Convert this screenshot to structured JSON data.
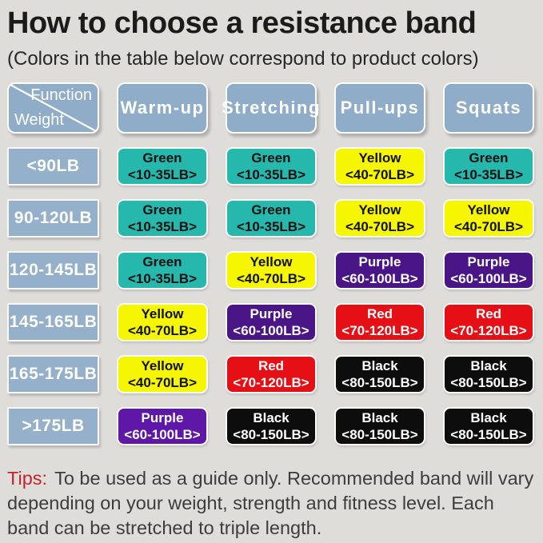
{
  "page": {
    "title": "How to choose a resistance band",
    "subtitle": "(Colors in the table below correspond to product colors)"
  },
  "table": {
    "corner": {
      "top_label": "Function",
      "bottom_label": "Weight"
    },
    "columns": [
      "Warm-up",
      "Stretching",
      "Pull-ups",
      "Squats"
    ],
    "rows": [
      {
        "weight": "<90LB",
        "cells": [
          {
            "name": "Green",
            "range": "<10-35LB>",
            "color": "teal"
          },
          {
            "name": "Green",
            "range": "<10-35LB>",
            "color": "teal"
          },
          {
            "name": "Yellow",
            "range": "<40-70LB>",
            "color": "yellow"
          },
          {
            "name": "Green",
            "range": "<10-35LB>",
            "color": "teal"
          }
        ]
      },
      {
        "weight": "90-120LB",
        "cells": [
          {
            "name": "Green",
            "range": "<10-35LB>",
            "color": "teal"
          },
          {
            "name": "Green",
            "range": "<10-35LB>",
            "color": "teal"
          },
          {
            "name": "Yellow",
            "range": "<40-70LB>",
            "color": "yellow"
          },
          {
            "name": "Yellow",
            "range": "<40-70LB>",
            "color": "yellow"
          }
        ]
      },
      {
        "weight": "120-145LB",
        "cells": [
          {
            "name": "Green",
            "range": "<10-35LB>",
            "color": "teal"
          },
          {
            "name": "Yellow",
            "range": "<40-70LB>",
            "color": "yellow"
          },
          {
            "name": "Purple",
            "range": "<60-100LB>",
            "color": "purple"
          },
          {
            "name": "Purple",
            "range": "<60-100LB>",
            "color": "purple"
          }
        ]
      },
      {
        "weight": "145-165LB",
        "cells": [
          {
            "name": "Yellow",
            "range": "<40-70LB>",
            "color": "yellow"
          },
          {
            "name": "Purple",
            "range": "<60-100LB>",
            "color": "purple"
          },
          {
            "name": "Red",
            "range": "<70-120LB>",
            "color": "red"
          },
          {
            "name": "Red",
            "range": "<70-120LB>",
            "color": "red"
          }
        ]
      },
      {
        "weight": "165-175LB",
        "cells": [
          {
            "name": "Yellow",
            "range": "<40-70LB>",
            "color": "yellow"
          },
          {
            "name": "Red",
            "range": "<70-120LB>",
            "color": "red"
          },
          {
            "name": "Black",
            "range": "<80-150LB>",
            "color": "black"
          },
          {
            "name": "Black",
            "range": "<80-150LB>",
            "color": "black"
          }
        ]
      },
      {
        "weight": ">175LB",
        "cells": [
          {
            "name": "Purple",
            "range": "<60-100LB>",
            "color": "purple_bright"
          },
          {
            "name": "Black",
            "range": "<80-150LB>",
            "color": "black"
          },
          {
            "name": "Black",
            "range": "<80-150LB>",
            "color": "black"
          },
          {
            "name": "Black",
            "range": "<80-150LB>",
            "color": "black"
          }
        ]
      }
    ]
  },
  "tips": {
    "label": "Tips:",
    "body": "To be used as a guide only. Recommended band will vary depending on your weight, strength and fitness level. Each band can be stretched to triple length."
  },
  "palette": {
    "teal": {
      "bg": "#26b7ad",
      "fg": "#101010"
    },
    "yellow": {
      "bg": "#f6f600",
      "fg": "#101010"
    },
    "purple": {
      "bg": "#4a1586",
      "fg": "#ffffff"
    },
    "purple_bright": {
      "bg": "#5e17a6",
      "fg": "#ffffff"
    },
    "red": {
      "bg": "#e50f15",
      "fg": "#ffffff"
    },
    "black": {
      "bg": "#0d0d0d",
      "fg": "#ffffff"
    },
    "header_blue": "#8fadc8",
    "weight_blue": "#94b0ca",
    "background": "#dfddda",
    "tips_red": "#c0272d"
  },
  "chart_data": {
    "type": "table",
    "title": "How to choose a resistance band",
    "subtitle": "(Colors in the table below correspond to product colors)",
    "columns": [
      "Weight",
      "Warm-up",
      "Stretching",
      "Pull-ups",
      "Squats"
    ],
    "rows": [
      [
        "<90LB",
        "Green <10-35LB>",
        "Green <10-35LB>",
        "Yellow <40-70LB>",
        "Green <10-35LB>"
      ],
      [
        "90-120LB",
        "Green <10-35LB>",
        "Green <10-35LB>",
        "Yellow <40-70LB>",
        "Yellow <40-70LB>"
      ],
      [
        "120-145LB",
        "Green <10-35LB>",
        "Yellow <40-70LB>",
        "Purple <60-100LB>",
        "Purple <60-100LB>"
      ],
      [
        "145-165LB",
        "Yellow <40-70LB>",
        "Purple <60-100LB>",
        "Red <70-120LB>",
        "Red <70-120LB>"
      ],
      [
        "165-175LB",
        "Yellow <40-70LB>",
        "Red <70-120LB>",
        "Black <80-150LB>",
        "Black <80-150LB>"
      ],
      [
        ">175LB",
        "Purple <60-100LB>",
        "Black <80-150LB>",
        "Black <80-150LB>",
        "Black <80-150LB>"
      ]
    ],
    "notes": "Tips: To be used as a guide only. Recommended band will vary depending on your weight, strength and fitness level. Each band can be stretched to triple length."
  }
}
